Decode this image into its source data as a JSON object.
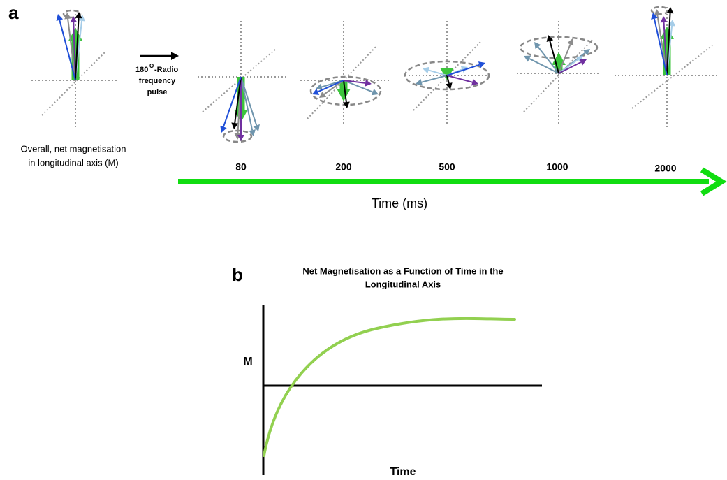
{
  "panel_a": {
    "label": "a",
    "pulse": {
      "number": "180",
      "superscript": "O",
      "lines": [
        "-Radio",
        "frequency",
        "pulse"
      ]
    },
    "caption": [
      "Overall, net magnetisation",
      "in longitudinal  axis (M)"
    ],
    "time_points": [
      "80",
      "200",
      "500",
      "1000",
      "2000"
    ],
    "axis_title": "Time (ms)"
  },
  "panel_b": {
    "label": "b",
    "title": [
      "Net Magnetisation as a Function of Time in the",
      "Longitudinal Axis"
    ],
    "y_label": "M",
    "x_label": "Time"
  }
}
